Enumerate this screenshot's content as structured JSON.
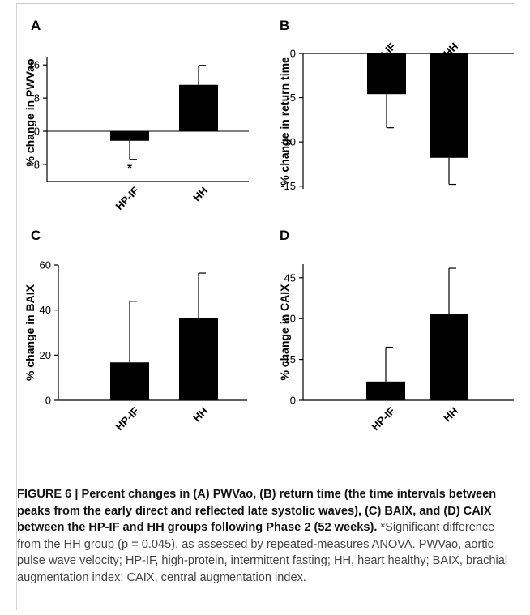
{
  "chart_data": [
    {
      "panel": "A",
      "type": "bar",
      "ylabel": "% change in PWVao",
      "categories": [
        "HP-IF",
        "HH"
      ],
      "values": [
        -2.3,
        11.2
      ],
      "errors": [
        4.5,
        4.7
      ],
      "yticks": [
        16,
        8,
        0,
        -8
      ],
      "ylim": [
        -9,
        18
      ],
      "annotations": [
        {
          "category": "HP-IF",
          "text": "*"
        }
      ],
      "category_axis": "bottom"
    },
    {
      "panel": "B",
      "type": "bar",
      "ylabel": "% change in return time",
      "categories": [
        "HP-IF",
        "HH"
      ],
      "values": [
        -4.6,
        -11.8
      ],
      "errors": [
        3.8,
        3.0
      ],
      "yticks": [
        0,
        -5,
        -10,
        -15
      ],
      "ylim": [
        -15.3,
        0
      ],
      "category_axis": "top"
    },
    {
      "panel": "C",
      "type": "bar",
      "ylabel": "% change in BAIX",
      "categories": [
        "HP-IF",
        "HH"
      ],
      "values": [
        16.8,
        36.3
      ],
      "errors": [
        27.1,
        20.1
      ],
      "yticks": [
        60,
        40,
        20,
        0
      ],
      "ylim": [
        0,
        60
      ],
      "category_axis": "bottom"
    },
    {
      "panel": "D",
      "type": "bar",
      "ylabel": "% change in CAIX",
      "categories": [
        "HP-IF",
        "HH"
      ],
      "values": [
        6.9,
        31.8
      ],
      "errors": [
        12.6,
        16.7
      ],
      "yticks": [
        45,
        30,
        15,
        0
      ],
      "ylim": [
        0,
        50
      ],
      "category_axis": "bottom"
    }
  ],
  "caption": {
    "lead": "FIGURE 6 | Percent changes in (A) PWVao, (B) return time (the time intervals between peaks from the early direct and reflected late systolic waves), (C) BAIX, and (D) CAIX between the HP-IF and HH groups following Phase 2 (52 weeks).",
    "body": " *Significant difference from the HH group (p = 0.045), as assessed by repeated-measures ANOVA. PWVao, aortic pulse wave velocity; HP-IF, high-protein, intermittent fasting; HH, heart healthy; BAIX, brachial augmentation index; CAIX, central augmentation index."
  },
  "colors": {
    "bar": "#000000",
    "axis": "#000000",
    "caption_text": "#444444"
  }
}
